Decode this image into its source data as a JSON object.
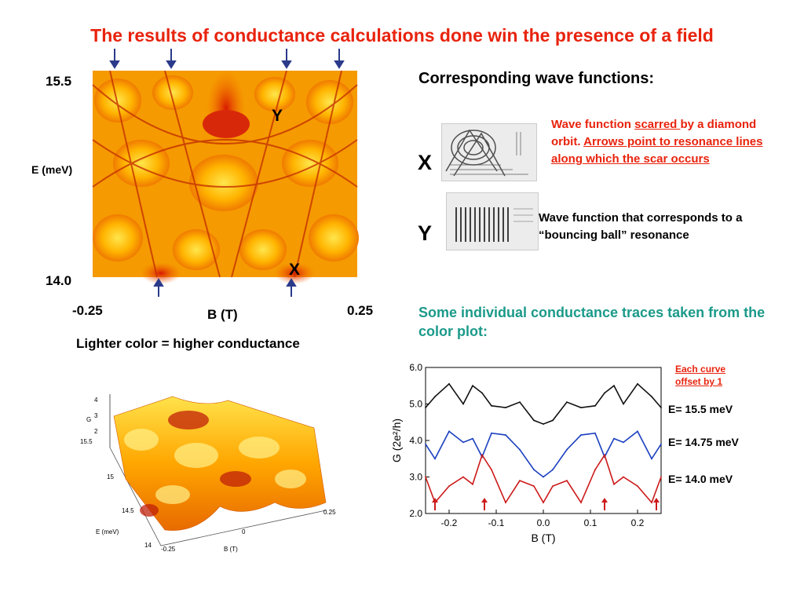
{
  "title": "The results of conductance calculations done win the presence of a field",
  "colormap": {
    "y_top": "15.5",
    "y_bottom": "14.0",
    "y_label": "E (meV)",
    "x_left": "-0.25",
    "x_right": "0.25",
    "x_label": "B (T)",
    "marker_y": "Y",
    "marker_x": "X",
    "caption": "Lighter color = higher conductance"
  },
  "wave": {
    "heading": "Corresponding wave functions:",
    "x_letter": "X",
    "y_letter": "Y",
    "x_desc_plain1": "Wave function ",
    "x_desc_u1": "scarred ",
    "x_desc_plain2": "by a diamond orbit. ",
    "x_desc_u2": "Arrows point to resonance lines along which the scar occurs",
    "y_desc": "Wave function that corresponds to a “bouncing ball” resonance"
  },
  "traces": {
    "heading": "Some individual conductance traces taken from the color plot:",
    "offset_note": "Each curve offset by 1"
  },
  "surface3d": {
    "g_label": "G",
    "g_ticks": [
      "4",
      "3",
      "2"
    ],
    "e_label": "E (meV)",
    "e_ticks": [
      "15.5",
      "15",
      "14.5",
      "14"
    ],
    "b_label": "B (T)",
    "b_ticks": [
      "-0.25",
      "0",
      "0.25"
    ]
  },
  "chart_data": {
    "type": "line",
    "xlabel": "B (T)",
    "ylabel": "G (2e²/h)",
    "xlim": [
      -0.25,
      0.25
    ],
    "ylim": [
      2.0,
      6.0
    ],
    "x_ticks": [
      -0.2,
      -0.1,
      0.0,
      0.1,
      0.2
    ],
    "y_ticks": [
      2.0,
      3.0,
      4.0,
      5.0,
      6.0
    ],
    "x": [
      -0.25,
      -0.23,
      -0.2,
      -0.17,
      -0.15,
      -0.13,
      -0.11,
      -0.08,
      -0.05,
      -0.02,
      0.0,
      0.02,
      0.05,
      0.08,
      0.11,
      0.13,
      0.15,
      0.17,
      0.2,
      0.23,
      0.25
    ],
    "series": [
      {
        "name": "E= 15.5 meV",
        "color": "#111111",
        "values": [
          4.9,
          5.2,
          5.55,
          5.0,
          5.5,
          5.3,
          4.95,
          4.9,
          5.05,
          4.55,
          4.45,
          4.55,
          5.05,
          4.9,
          4.95,
          5.3,
          5.5,
          5.0,
          5.55,
          5.2,
          4.9
        ]
      },
      {
        "name": "E= 14.75 meV",
        "color": "#1a3fbf",
        "values": [
          3.9,
          3.5,
          4.25,
          3.95,
          4.05,
          3.55,
          4.2,
          4.15,
          3.75,
          3.2,
          3.0,
          3.2,
          3.75,
          4.15,
          4.2,
          3.55,
          4.05,
          3.95,
          4.25,
          3.5,
          3.9
        ]
      },
      {
        "name": "E= 14.0 meV",
        "color": "#cc1a1a",
        "values": [
          3.0,
          2.3,
          2.75,
          3.0,
          2.8,
          3.6,
          3.2,
          2.3,
          2.9,
          2.75,
          2.3,
          2.75,
          2.9,
          2.3,
          3.2,
          3.6,
          2.8,
          3.0,
          2.75,
          2.3,
          3.0
        ]
      }
    ],
    "arrows_x": [
      -0.23,
      -0.125,
      0.13,
      0.24
    ]
  }
}
